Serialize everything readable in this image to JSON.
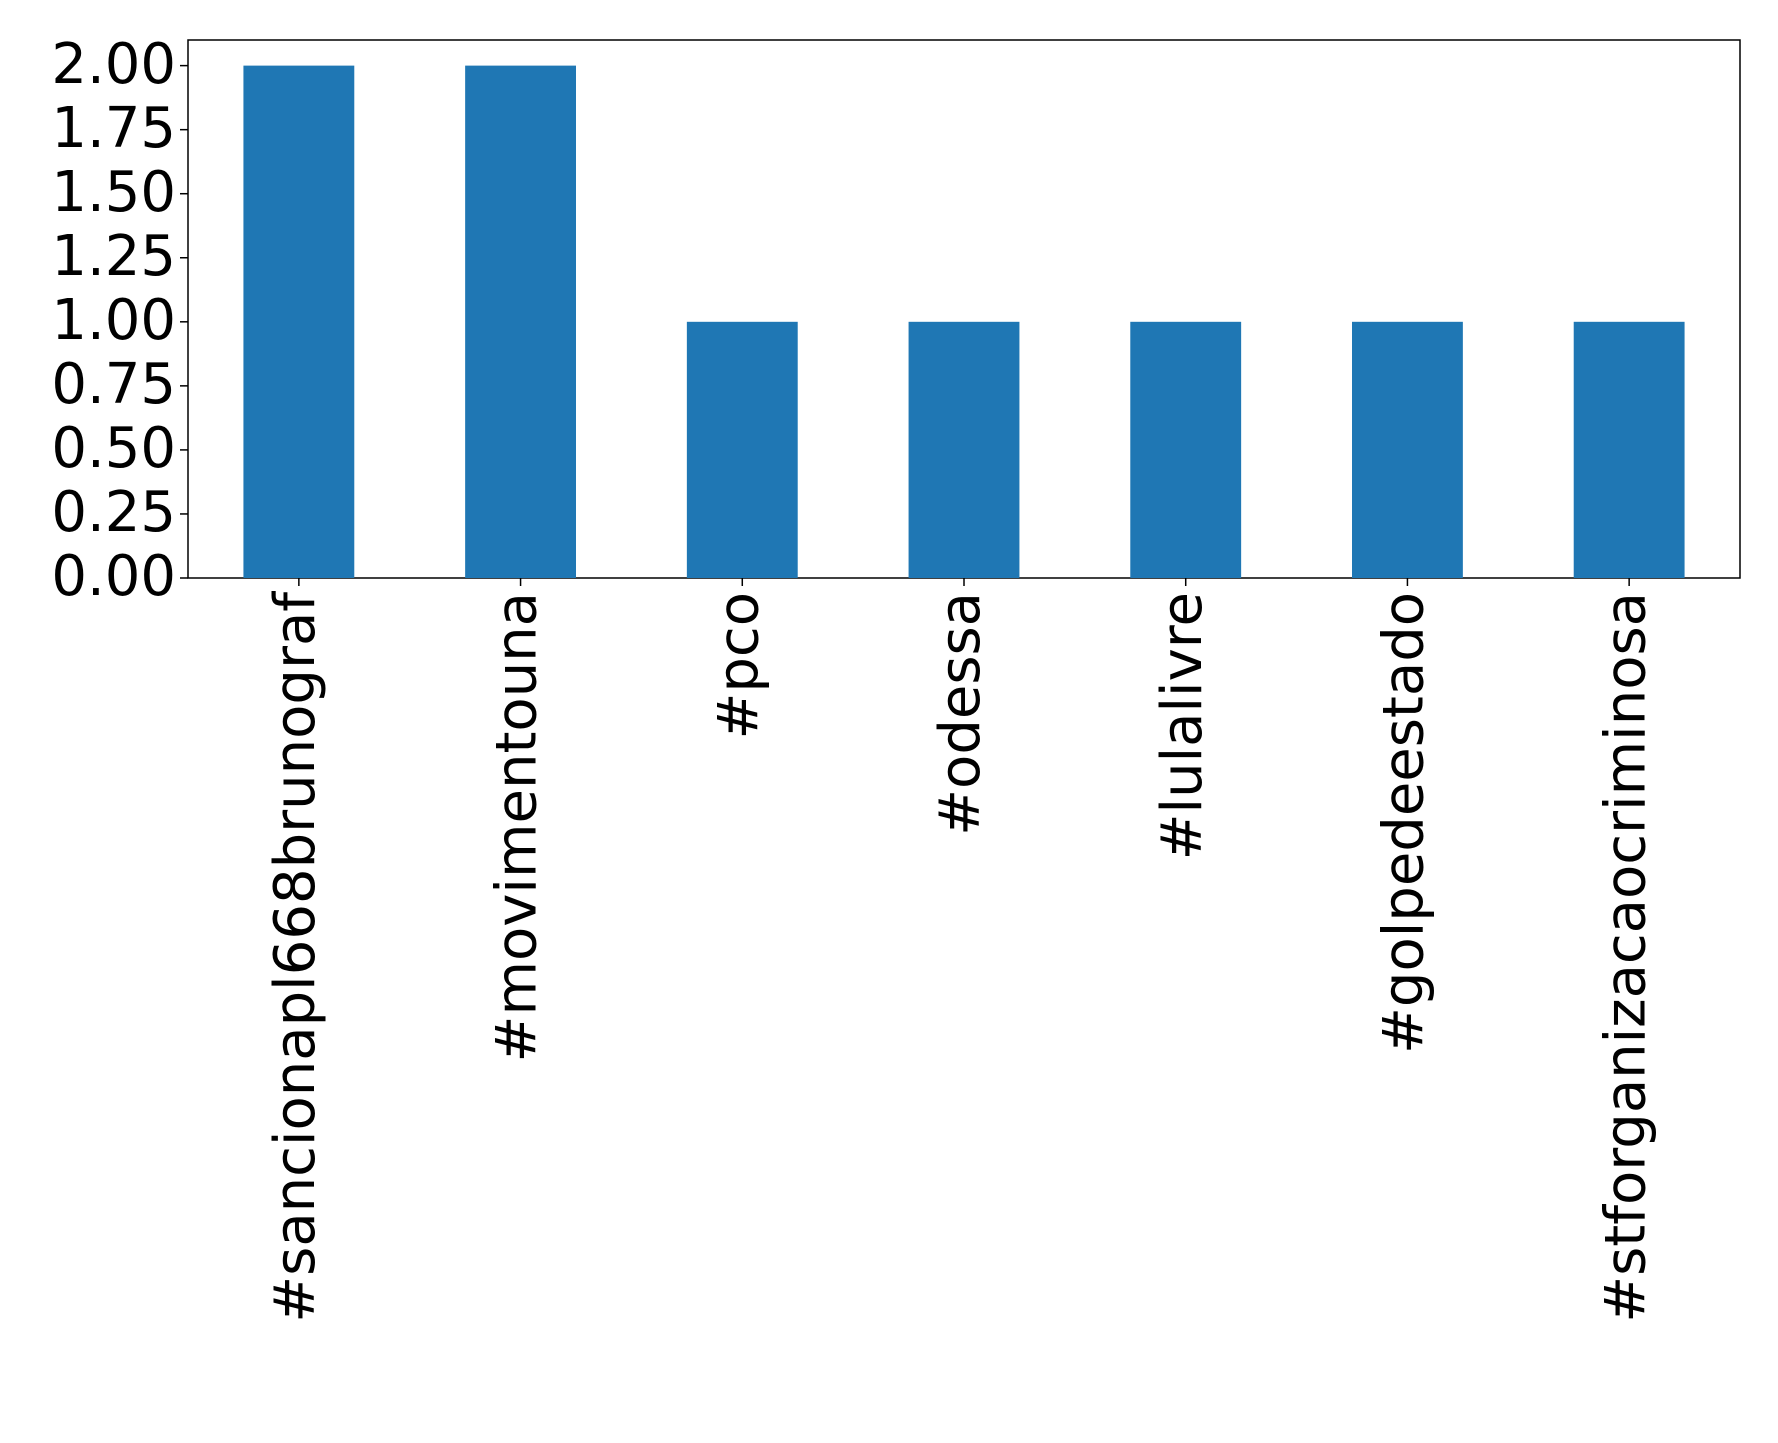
{
  "chart_data": {
    "type": "bar",
    "categories": [
      "#sancionapl668brunograf",
      "#movimentouna",
      "#pco",
      "#odessa",
      "#lulalivre",
      "#golpedeestado",
      "#stforganizacaocriminosa"
    ],
    "values": [
      2,
      2,
      1,
      1,
      1,
      1,
      1
    ],
    "color": "#1f77b4",
    "ylim": [
      0,
      2.1
    ],
    "yticks": [
      {
        "value": 0,
        "label": "0.00"
      },
      {
        "value": 0.25,
        "label": "0.25"
      },
      {
        "value": 0.5,
        "label": "0.50"
      },
      {
        "value": 0.75,
        "label": "0.75"
      },
      {
        "value": 1,
        "label": "1.00"
      },
      {
        "value": 1.25,
        "label": "1.25"
      },
      {
        "value": 1.5,
        "label": "1.50"
      },
      {
        "value": 1.75,
        "label": "1.75"
      },
      {
        "value": 2,
        "label": "2.00"
      }
    ],
    "grid": false
  }
}
